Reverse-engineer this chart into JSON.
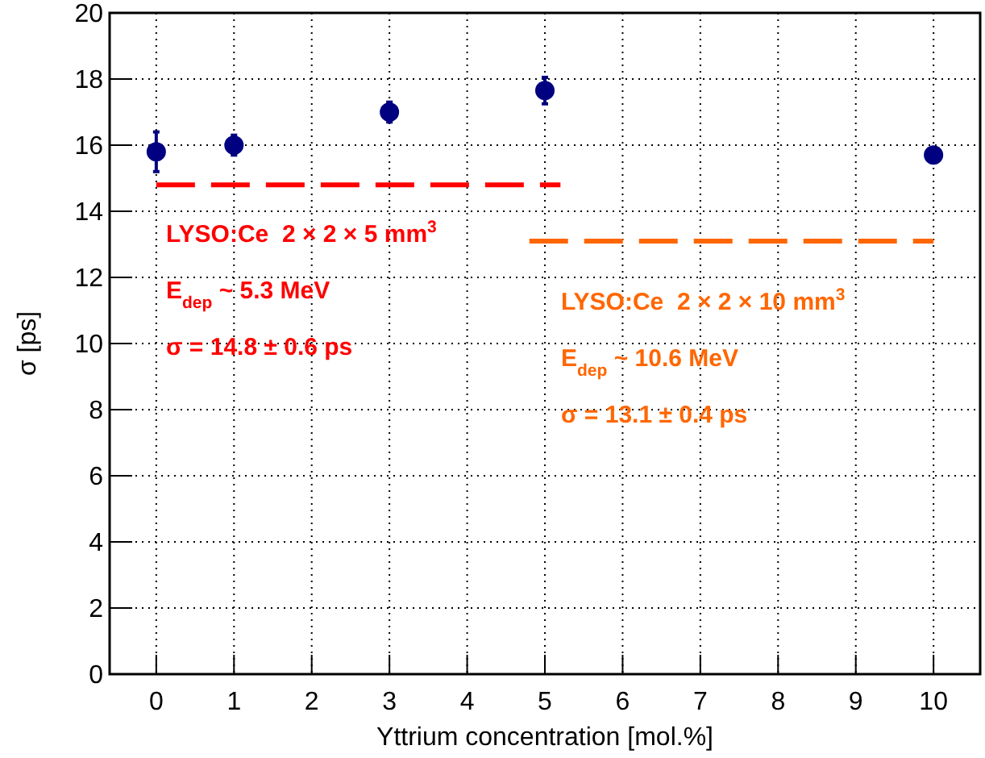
{
  "chart_data": {
    "type": "scatter",
    "xlabel": "Yttrium concentration [mol.%]",
    "ylabel": "σ [ps]",
    "xlim": [
      -0.6,
      10.6
    ],
    "xticks": [
      0,
      1,
      2,
      3,
      4,
      5,
      6,
      7,
      8,
      9,
      10
    ],
    "ylim": [
      0,
      20
    ],
    "yticks": [
      0,
      2,
      4,
      6,
      8,
      10,
      12,
      14,
      16,
      18,
      20
    ],
    "grid": true,
    "marker": "circle",
    "series": [
      {
        "color": "#000080",
        "x": [
          0,
          1,
          3,
          5,
          10
        ],
        "values": [
          15.8,
          16.0,
          17.0,
          17.65,
          15.7
        ],
        "errors": [
          0.6,
          0.3,
          0.3,
          0.4,
          0.2
        ]
      },
      {
        "type": "line",
        "color": "#ff0000",
        "line_style": "dashed",
        "marker": "none",
        "x": [
          0,
          5.2
        ],
        "values": [
          14.8,
          14.8
        ]
      },
      {
        "type": "line",
        "color": "#ff6600",
        "line_style": "dashed",
        "marker": "none",
        "x": [
          4.8,
          10
        ],
        "values": [
          13.1,
          13.1
        ]
      }
    ],
    "annotations": [
      "LYSO:Ce  2 × 2 × 5 mm$^{3}$",
      "E$_{dep}$ ~ 5.3 MeV",
      "σ = 14.8 ± 0.6 ps",
      "LYSO:Ce  2 × 2 × 10 mm$^{3}$",
      "E$_{dep}$ ~ 10.6 MeV",
      "σ = 13.1 ± 0.4 ps"
    ]
  }
}
